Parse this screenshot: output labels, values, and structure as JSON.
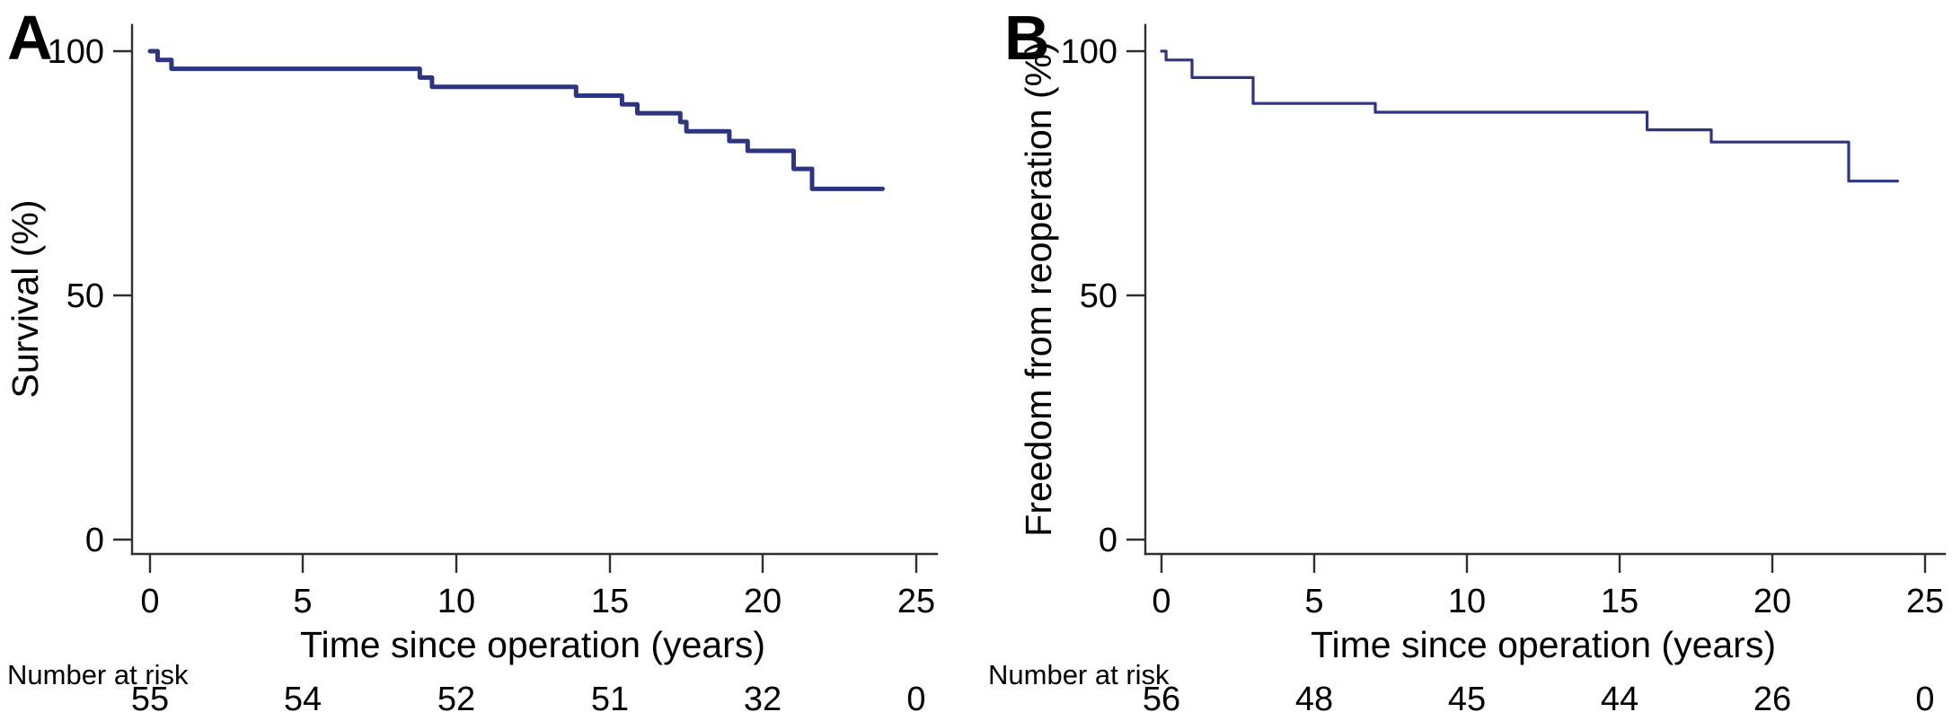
{
  "figure": {
    "description": "Two-panel Kaplan-Meier figure",
    "background": "#ffffff"
  },
  "chart_data": [
    {
      "type": "line",
      "subtype": "kaplan-meier-step",
      "panel_label": "A",
      "ylabel": "Survival (%)",
      "xlabel": "Time since operation (years)",
      "xlim": [
        0,
        25
      ],
      "ylim": [
        0,
        100
      ],
      "x_ticks": [
        0,
        5,
        10,
        15,
        20,
        25
      ],
      "y_ticks": [
        100,
        50,
        0
      ],
      "grid": false,
      "legend": "none",
      "line_color": "#2d3480",
      "line_width": 5,
      "steps": [
        [
          0,
          100
        ],
        [
          0.25,
          98.2
        ],
        [
          0.7,
          96.4
        ],
        [
          8.8,
          94.6
        ],
        [
          9.2,
          92.7
        ],
        [
          13.9,
          90.9
        ],
        [
          15.4,
          89.1
        ],
        [
          15.9,
          87.3
        ],
        [
          17.3,
          85.5
        ],
        [
          17.5,
          83.6
        ],
        [
          18.9,
          81.6
        ],
        [
          19.5,
          79.6
        ],
        [
          21.0,
          75.9
        ],
        [
          21.6,
          71.8
        ]
      ],
      "end_time": 23.9,
      "risk_label": "Number at risk",
      "number_at_risk": {
        "times": [
          0,
          5,
          10,
          15,
          20,
          25
        ],
        "counts": [
          55,
          54,
          52,
          51,
          32,
          0
        ]
      }
    },
    {
      "type": "line",
      "subtype": "kaplan-meier-step",
      "panel_label": "B",
      "ylabel": "Freedom from reoperation (%)",
      "xlabel": "Time since operation (years)",
      "xlim": [
        0,
        25
      ],
      "ylim": [
        0,
        100
      ],
      "x_ticks": [
        0,
        5,
        10,
        15,
        20,
        25
      ],
      "y_ticks": [
        100,
        50,
        0
      ],
      "grid": false,
      "legend": "none",
      "line_color": "#2d3480",
      "line_width": 3.2,
      "steps": [
        [
          0,
          100
        ],
        [
          0.15,
          98.2
        ],
        [
          1.0,
          94.6
        ],
        [
          3.0,
          89.3
        ],
        [
          7.0,
          87.5
        ],
        [
          15.9,
          83.9
        ],
        [
          18.0,
          81.4
        ],
        [
          22.5,
          73.4
        ]
      ],
      "end_time": 24.1,
      "risk_label": "Number at risk",
      "number_at_risk": {
        "times": [
          0,
          5,
          10,
          15,
          20,
          25
        ],
        "counts": [
          56,
          48,
          45,
          44,
          26,
          0
        ]
      }
    }
  ]
}
